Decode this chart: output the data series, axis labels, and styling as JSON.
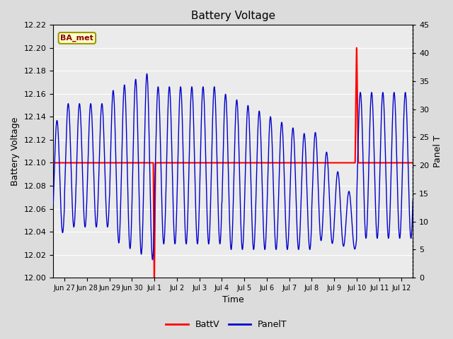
{
  "title": "Battery Voltage",
  "xlabel": "Time",
  "ylabel_left": "Battery Voltage",
  "ylabel_right": "Panel T",
  "ylim_left": [
    12.0,
    12.22
  ],
  "ylim_right": [
    0,
    45
  ],
  "yticks_left": [
    12.0,
    12.02,
    12.04,
    12.06,
    12.08,
    12.1,
    12.12,
    12.14,
    12.16,
    12.18,
    12.2,
    12.22
  ],
  "yticks_right": [
    0,
    5,
    10,
    15,
    20,
    25,
    30,
    35,
    40,
    45
  ],
  "bg_color": "#dcdcdc",
  "plot_bg_color": "#ebebeb",
  "grid_color": "#ffffff",
  "battv_color": "#ff0000",
  "panelt_color": "#0000cc",
  "battv_value": 12.1,
  "annotation_box_color": "#ffffcc",
  "annotation_box_edge": "#999900",
  "annotation_text": "BA_met",
  "legend_battv": "BattV",
  "legend_panelt": "PanelT",
  "tick_labels": [
    "Jun 27",
    "Jun 28",
    "Jun 29",
    "Jun 30",
    "Jul 1",
    "Jul 2",
    "Jul 3",
    "Jul 4",
    "Jul 5",
    "Jul 6",
    "Jul 7",
    "Jul 8",
    "Jul 9",
    "Jul 10",
    "Jul 11",
    "Jul 12"
  ],
  "tick_positions": [
    1,
    2,
    3,
    4,
    5,
    6,
    7,
    8,
    9,
    10,
    11,
    12,
    13,
    14,
    15,
    16
  ],
  "xlim": [
    0.5,
    16.5
  ]
}
